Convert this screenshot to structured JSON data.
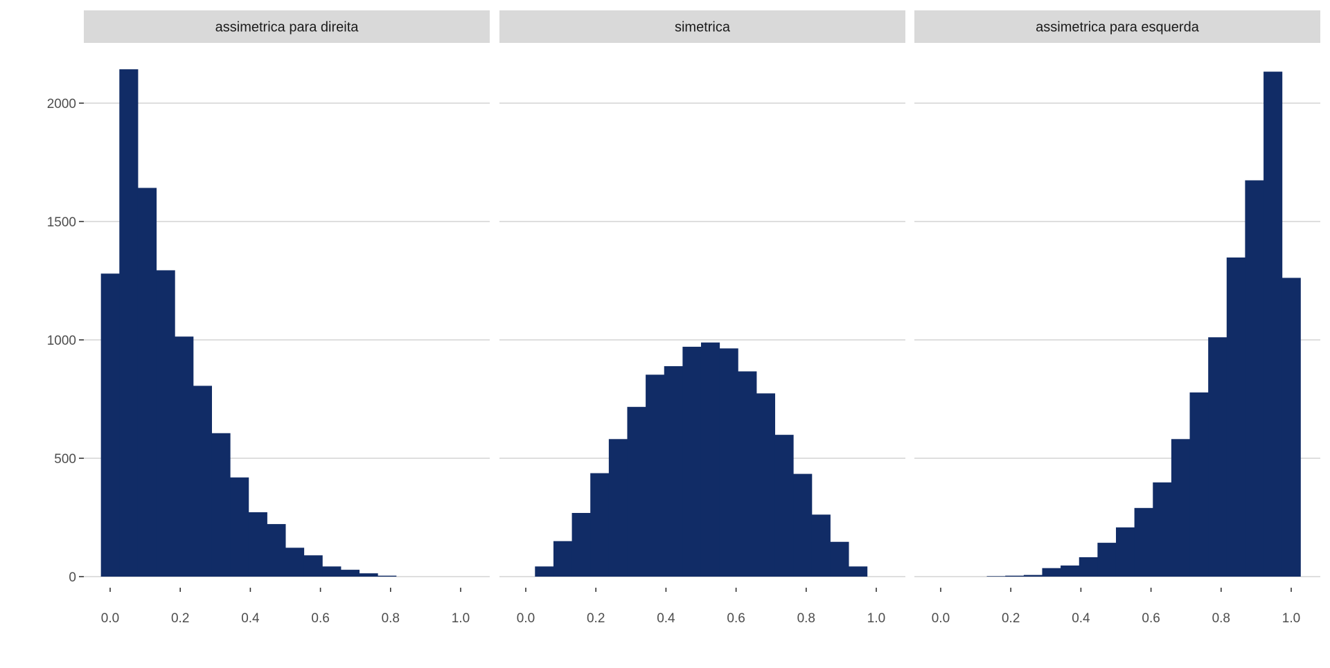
{
  "chart_data": {
    "type": "bar",
    "subtype": "histogram-facets",
    "bar_color": "#112c66",
    "strip_color": "#d9d9d9",
    "grid": true,
    "xlim": [
      -0.0263,
      1.0263
    ],
    "ylim": [
      0,
      2150
    ],
    "x_ticks": [
      "0.0",
      "0.2",
      "0.4",
      "0.6",
      "0.8",
      "1.0"
    ],
    "y_ticks": [
      "0",
      "500",
      "1000",
      "1500",
      "2000"
    ],
    "bin_centers": [
      0,
      0.0526,
      0.1053,
      0.1579,
      0.2105,
      0.2632,
      0.3158,
      0.3684,
      0.4211,
      0.4737,
      0.5263,
      0.5789,
      0.6316,
      0.6842,
      0.7368,
      0.7895,
      0.8421,
      0.8947,
      0.9474,
      1.0
    ],
    "panels": [
      {
        "title": "assimetrica para direita",
        "values": [
          1280,
          2143,
          1642,
          1294,
          1014,
          806,
          606,
          419,
          272,
          222,
          122,
          90,
          43,
          29,
          14,
          4,
          0,
          0,
          0,
          0
        ]
      },
      {
        "title": "simetrica",
        "values": [
          0,
          43,
          150,
          269,
          437,
          581,
          717,
          853,
          889,
          971,
          989,
          964,
          867,
          774,
          599,
          434,
          262,
          147,
          43,
          0
        ]
      },
      {
        "title": "assimetrica para esquerda",
        "values": [
          0,
          0,
          0,
          2,
          4,
          7,
          36,
          47,
          82,
          143,
          208,
          290,
          398,
          581,
          778,
          1011,
          1348,
          1674,
          2133,
          1262
        ]
      }
    ]
  }
}
